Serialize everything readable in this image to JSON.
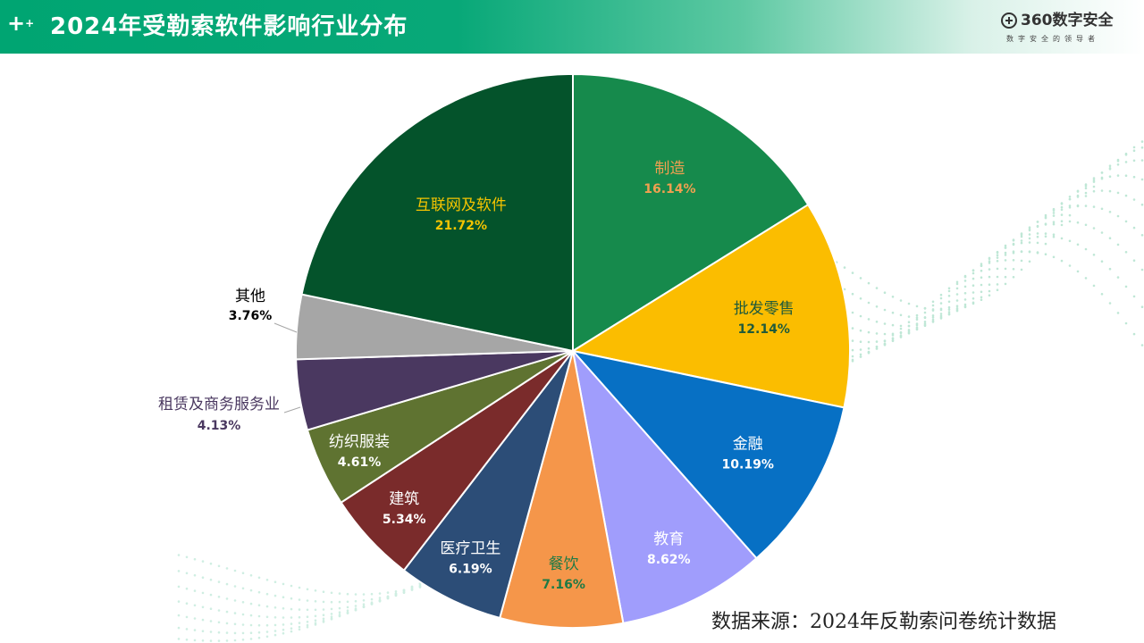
{
  "header": {
    "title": "2024年受勒索软件影响行业分布",
    "logo_name": "360数字安全",
    "logo_slogan": "数字安全的领导者",
    "colors": {
      "bar_start": "#00a572",
      "bar_end": "#ffffff"
    }
  },
  "source_note": "数据来源：2024年反勒索问卷统计数据",
  "chart_data": {
    "type": "pie",
    "start_angle_deg": 0,
    "direction": "clockwise",
    "slices": [
      {
        "label": "制造",
        "value": 16.14,
        "value_label": "16.14%",
        "color": "#168a4c",
        "text_color": "#f0a050"
      },
      {
        "label": "批发零售",
        "value": 12.14,
        "value_label": "12.14%",
        "color": "#fbbd00",
        "text_color": "#1f5a3a"
      },
      {
        "label": "金融",
        "value": 10.19,
        "value_label": "10.19%",
        "color": "#0770c4",
        "text_color": "#ffffff"
      },
      {
        "label": "教育",
        "value": 8.62,
        "value_label": "8.62%",
        "color": "#a09dfc",
        "text_color": "#ffffff"
      },
      {
        "label": "餐饮",
        "value": 7.16,
        "value_label": "7.16%",
        "color": "#f5964a",
        "text_color": "#1e7a45"
      },
      {
        "label": "医疗卫生",
        "value": 6.19,
        "value_label": "6.19%",
        "color": "#2c4d77",
        "text_color": "#ffffff"
      },
      {
        "label": "建筑",
        "value": 5.34,
        "value_label": "5.34%",
        "color": "#7a2b2b",
        "text_color": "#ffffff"
      },
      {
        "label": "纺织服装",
        "value": 4.61,
        "value_label": "4.61%",
        "color": "#5f7331",
        "text_color": "#ffffff"
      },
      {
        "label": "租赁及商务服务业",
        "value": 4.13,
        "value_label": "4.13%",
        "color": "#4a3860",
        "text_color": "#4a3860",
        "outside": true
      },
      {
        "label": "其他",
        "value": 3.76,
        "value_label": "3.76%",
        "color": "#a6a6a6",
        "text_color": "#000000",
        "outside": true
      },
      {
        "label": "互联网及软件",
        "value": 21.72,
        "value_label": "21.72%",
        "color": "#04532b",
        "text_color": "#f5c400"
      }
    ]
  }
}
